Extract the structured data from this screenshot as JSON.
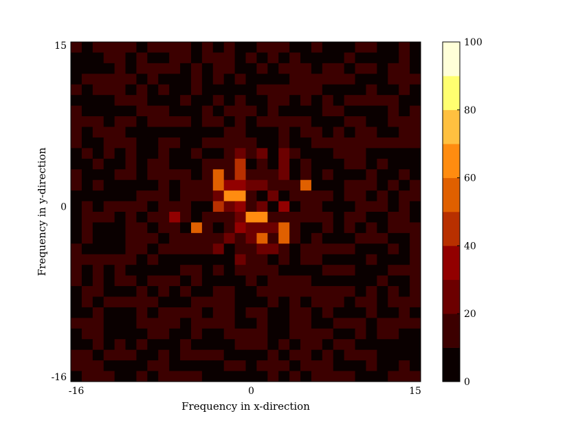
{
  "chart_data": {
    "type": "heatmap",
    "title": "",
    "xlabel": "Frequency in x-direction",
    "ylabel": "Frequency in y-direction",
    "xlim": [
      -16,
      15
    ],
    "ylim": [
      -16,
      15
    ],
    "x_ticks": [
      {
        "value": -16,
        "label": "-16"
      },
      {
        "value": 0,
        "label": "0"
      },
      {
        "value": 15,
        "label": "15"
      }
    ],
    "y_ticks": [
      {
        "value": 15,
        "label": "15"
      },
      {
        "value": 0,
        "label": "0"
      },
      {
        "value": -16,
        "label": "-16"
      }
    ],
    "colorbar": {
      "min": 0,
      "max": 100,
      "levels": 10,
      "ticks": [
        0,
        20,
        40,
        60,
        80,
        100
      ],
      "tick_labels": [
        "0",
        "20",
        "40",
        "60",
        "80",
        "100"
      ],
      "colors": [
        "#0a0000",
        "#3c0000",
        "#6c0000",
        "#920000",
        "#b83000",
        "#e06000",
        "#ff8c10",
        "#ffc040",
        "#ffff70",
        "#ffffd8"
      ]
    },
    "grid_size": 32,
    "background_level_range": [
      2,
      18
    ],
    "peaks": [
      {
        "x": -2,
        "y": 1,
        "value": 68
      },
      {
        "x": -1,
        "y": 1,
        "value": 66
      },
      {
        "x": 0,
        "y": -1,
        "value": 65
      },
      {
        "x": 1,
        "y": -1,
        "value": 64
      },
      {
        "x": -3,
        "y": 3,
        "value": 55
      },
      {
        "x": -3,
        "y": 2,
        "value": 55
      },
      {
        "x": 5,
        "y": 2,
        "value": 52
      },
      {
        "x": 1,
        "y": -3,
        "value": 52
      },
      {
        "x": 3,
        "y": -2,
        "value": 50
      },
      {
        "x": 3,
        "y": -3,
        "value": 50
      },
      {
        "x": -5,
        "y": -2,
        "value": 55
      },
      {
        "x": -3,
        "y": 0,
        "value": 48
      },
      {
        "x": -1,
        "y": 4,
        "value": 42
      },
      {
        "x": -1,
        "y": 3,
        "value": 40
      },
      {
        "x": -1,
        "y": 2,
        "value": 38
      },
      {
        "x": -1,
        "y": 0,
        "value": 35
      },
      {
        "x": -2,
        "y": 2,
        "value": 30
      },
      {
        "x": 3,
        "y": 0,
        "value": 32
      },
      {
        "x": 3,
        "y": 3,
        "value": 28
      },
      {
        "x": 3,
        "y": 5,
        "value": 25
      },
      {
        "x": 3,
        "y": 4,
        "value": 25
      },
      {
        "x": 1,
        "y": 5,
        "value": 25
      },
      {
        "x": 1,
        "y": 0,
        "value": 22
      },
      {
        "x": 2,
        "y": 1,
        "value": 24
      },
      {
        "x": -2,
        "y": 0,
        "value": 25
      },
      {
        "x": -1,
        "y": -2,
        "value": 30
      },
      {
        "x": 0,
        "y": -2,
        "value": 25
      },
      {
        "x": 1,
        "y": -4,
        "value": 25
      },
      {
        "x": -3,
        "y": -4,
        "value": 28
      },
      {
        "x": -1,
        "y": -5,
        "value": 28
      },
      {
        "x": 2,
        "y": -4,
        "value": 28
      },
      {
        "x": -7,
        "y": -1,
        "value": 30
      },
      {
        "x": 0,
        "y": -3,
        "value": 22
      },
      {
        "x": -2,
        "y": -3,
        "value": 22
      },
      {
        "x": 2,
        "y": -2,
        "value": 22
      }
    ]
  }
}
